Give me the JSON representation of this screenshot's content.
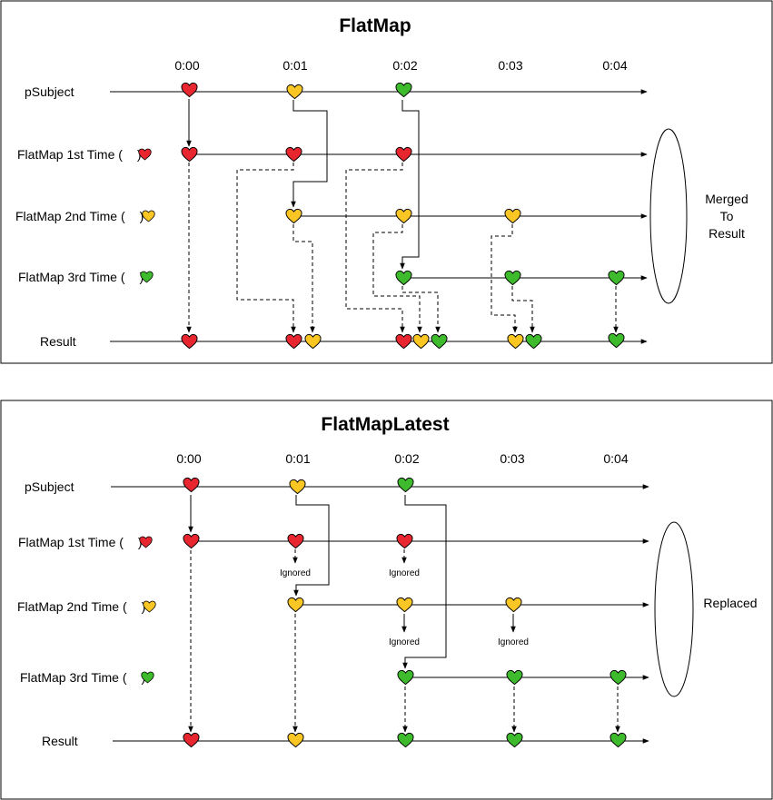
{
  "colors": {
    "red": "#e8262f",
    "yellow": "#f9c623",
    "green": "#3dbb2c",
    "outline": "#000000"
  },
  "panel1": {
    "title": "FlatMap",
    "times": [
      "0:00",
      "0:01",
      "0:02",
      "0:03",
      "0:04"
    ],
    "rows": {
      "subject": "pSubject",
      "first_pre": "FlatMap 1st Time (",
      "first_post": ")",
      "second_pre": "FlatMap 2nd Time (",
      "second_post": ")",
      "third_pre": "FlatMap 3rd Time (",
      "third_post": ")",
      "result": "Result"
    },
    "side": [
      "Merged",
      "To",
      "Result"
    ]
  },
  "panel2": {
    "title": "FlatMapLatest",
    "times": [
      "0:00",
      "0:01",
      "0:02",
      "0:03",
      "0:04"
    ],
    "rows": {
      "subject": "pSubject",
      "first_pre": "FlatMap 1st Time (",
      "first_post": ")",
      "second_pre": "FlatMap 2nd Time (",
      "second_post": ")",
      "third_pre": "FlatMap 3rd Time (",
      "third_post": ")",
      "result": "Result"
    },
    "ignored": "Ignored",
    "side": "Replaced"
  }
}
